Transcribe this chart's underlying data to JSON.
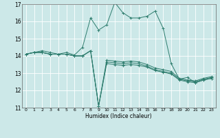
{
  "xlabel": "Humidex (Indice chaleur)",
  "bg_color": "#cce8e8",
  "grid_color": "#ffffff",
  "line_color": "#2e7d6e",
  "xlim": [
    -0.5,
    23.5
  ],
  "ylim": [
    11,
    17
  ],
  "yticks": [
    11,
    12,
    13,
    14,
    15,
    16,
    17
  ],
  "xticks": [
    0,
    1,
    2,
    3,
    4,
    5,
    6,
    7,
    8,
    9,
    10,
    11,
    12,
    13,
    14,
    15,
    16,
    17,
    18,
    19,
    20,
    21,
    22,
    23
  ],
  "series": [
    [
      14.1,
      14.2,
      14.2,
      14.1,
      14.1,
      14.1,
      14.0,
      14.0,
      14.3,
      11.1,
      13.55,
      13.5,
      13.45,
      13.5,
      13.45,
      13.35,
      13.15,
      13.05,
      12.95,
      12.6,
      12.5,
      12.45,
      12.6,
      12.7
    ],
    [
      14.1,
      14.2,
      14.2,
      14.1,
      14.1,
      14.1,
      14.0,
      14.0,
      14.3,
      11.1,
      13.65,
      13.6,
      13.55,
      13.6,
      13.55,
      13.4,
      13.2,
      13.1,
      13.0,
      12.65,
      12.55,
      12.5,
      12.65,
      12.75
    ],
    [
      14.1,
      14.2,
      14.2,
      14.1,
      14.1,
      14.1,
      14.0,
      14.0,
      14.3,
      11.1,
      13.75,
      13.7,
      13.65,
      13.7,
      13.65,
      13.5,
      13.3,
      13.2,
      13.1,
      12.7,
      12.6,
      12.55,
      12.7,
      12.8
    ],
    [
      14.1,
      14.2,
      14.3,
      14.2,
      14.1,
      14.2,
      14.05,
      14.5,
      16.2,
      15.5,
      15.8,
      17.1,
      16.5,
      16.2,
      16.2,
      16.3,
      16.6,
      15.6,
      13.55,
      12.65,
      12.75,
      12.45,
      12.6,
      12.7
    ]
  ]
}
